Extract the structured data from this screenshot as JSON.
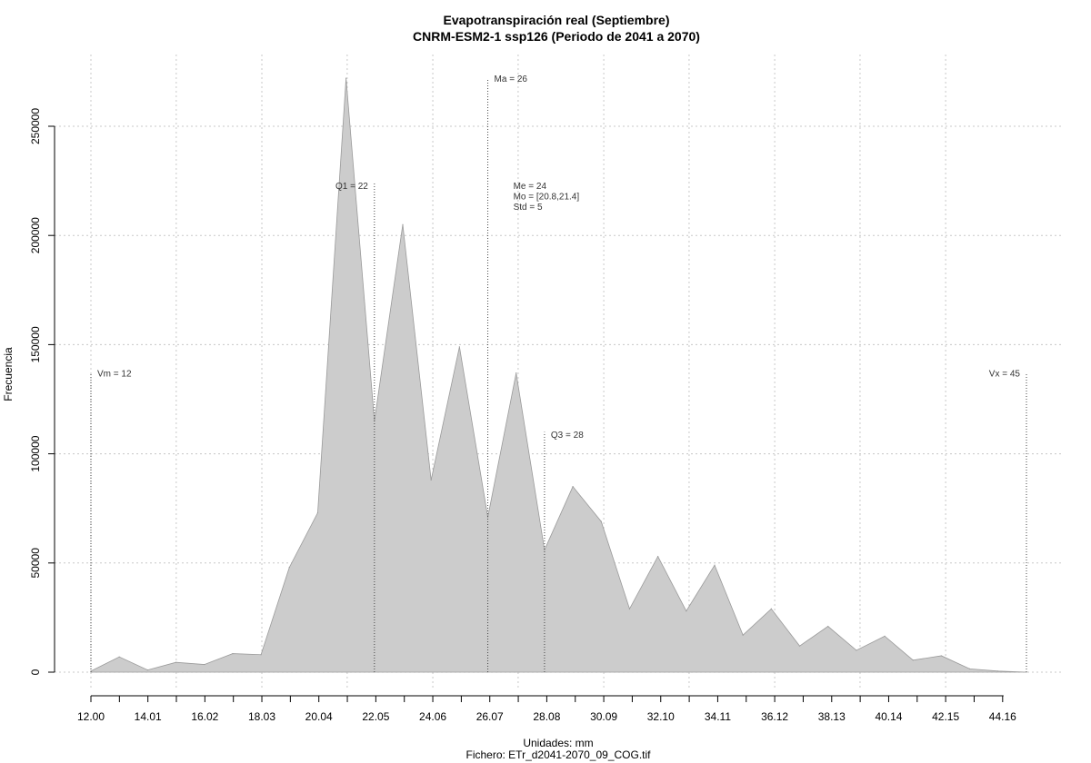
{
  "chart_data": {
    "type": "area",
    "title": "Evapotranspiración real (Septiembre)",
    "subtitle": "CNRM-ESM2-1 ssp126 (Periodo de 2041 a 2070)",
    "xlabel": "Unidades: mm",
    "ylabel": "Frecuencia",
    "file_caption": "Fichero: ETr_d2041-2070_09_COG.tif",
    "xlim": [
      12.0,
      45.0
    ],
    "ylim": [
      0,
      275000
    ],
    "x_ticks": [
      "12.00",
      "14.01",
      "16.02",
      "18.03",
      "20.04",
      "22.05",
      "24.06",
      "26.07",
      "28.08",
      "30.09",
      "32.10",
      "34.11",
      "36.12",
      "38.13",
      "40.14",
      "42.15",
      "44.16"
    ],
    "x_tick_values": [
      12.0,
      14.01,
      16.02,
      18.03,
      20.04,
      22.05,
      24.06,
      26.07,
      28.08,
      30.09,
      32.1,
      34.11,
      36.12,
      38.13,
      40.14,
      42.15,
      44.16
    ],
    "y_ticks": [
      "0",
      "50000",
      "100000",
      "150000",
      "200000",
      "250000"
    ],
    "y_tick_values": [
      0,
      50000,
      100000,
      150000,
      200000,
      250000
    ],
    "grid": true,
    "fill_color": "#cccccc",
    "x": [
      12.0,
      13.0,
      14.0,
      15.0,
      16.0,
      17.0,
      18.0,
      19.0,
      20.0,
      21.0,
      22.0,
      23.0,
      24.0,
      25.0,
      26.0,
      27.0,
      28.0,
      29.0,
      30.0,
      31.0,
      32.0,
      33.0,
      34.0,
      35.0,
      36.0,
      37.0,
      38.0,
      39.0,
      40.0,
      41.0,
      42.0,
      43.0,
      44.0,
      45.0
    ],
    "values": [
      500,
      7000,
      1000,
      4500,
      3500,
      8500,
      8000,
      48000,
      73000,
      272000,
      115000,
      205000,
      88000,
      149000,
      71000,
      137000,
      56000,
      85000,
      69000,
      29000,
      53000,
      28000,
      49000,
      17000,
      29000,
      12000,
      21000,
      10000,
      16500,
      5500,
      7500,
      1500,
      500,
      0
    ],
    "markers": [
      {
        "label": "Vm = 12",
        "x": 12.0,
        "y_top": 137000,
        "label_side": "right",
        "label_y": 137000
      },
      {
        "label": "Q1 = 22",
        "x": 22.0,
        "y_top": 224000,
        "label_side": "left",
        "label_y": 223000
      },
      {
        "label": "Ma = 26",
        "x": 26.0,
        "y_top": 272000,
        "label_side": "right",
        "label_y": 272000
      },
      {
        "label": "Q3 = 28",
        "x": 28.0,
        "y_top": 110000,
        "label_side": "right",
        "label_y": 109000
      },
      {
        "label": "Vx = 45",
        "x": 45.0,
        "y_top": 137000,
        "label_side": "left",
        "label_y": 137000
      }
    ],
    "stats": [
      "Me = 24",
      "Mo = [20.8,21.4]",
      "Std = 5"
    ],
    "stats_anchor": {
      "x": 26.9,
      "y": 223000
    }
  }
}
